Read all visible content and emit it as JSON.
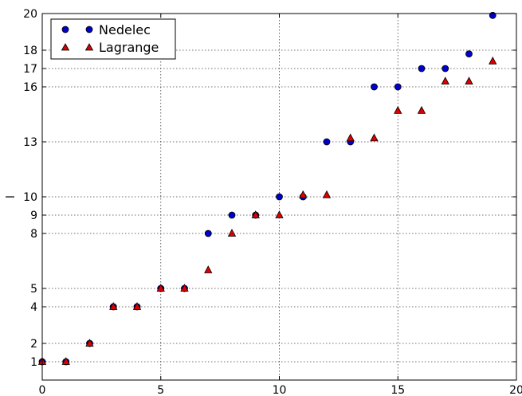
{
  "chart_data": {
    "type": "scatter",
    "title": "",
    "xlabel": "",
    "ylabel": "l",
    "xlim": [
      0,
      20
    ],
    "ylim": [
      0,
      20
    ],
    "xticks": [
      0,
      5,
      10,
      15,
      20
    ],
    "yticks": [
      1,
      2,
      4,
      5,
      8,
      9,
      10,
      13,
      16,
      17,
      18,
      20
    ],
    "grid": true,
    "legend_position": "top-left",
    "series": [
      {
        "name": "Nedelec",
        "marker": "circle",
        "color": "#0000cc",
        "x": [
          0,
          1,
          2,
          3,
          4,
          5,
          6,
          7,
          8,
          9,
          10,
          11,
          12,
          13,
          14,
          15,
          16,
          17,
          18,
          19
        ],
        "y": [
          1,
          1,
          2,
          4,
          4,
          5,
          5,
          8,
          9,
          9,
          10,
          10,
          13,
          13,
          16,
          16,
          17,
          17,
          17.8,
          19.9
        ]
      },
      {
        "name": "Lagrange",
        "marker": "triangle",
        "color": "#dd0000",
        "x": [
          0,
          1,
          2,
          3,
          4,
          5,
          6,
          7,
          8,
          9,
          10,
          11,
          12,
          13,
          14,
          15,
          16,
          17,
          18,
          19
        ],
        "y": [
          1,
          1,
          2,
          4,
          4,
          5,
          5,
          6,
          8,
          9,
          9,
          10.1,
          10.1,
          13.2,
          13.2,
          14.7,
          14.7,
          16.3,
          16.3,
          17.4
        ]
      }
    ]
  }
}
